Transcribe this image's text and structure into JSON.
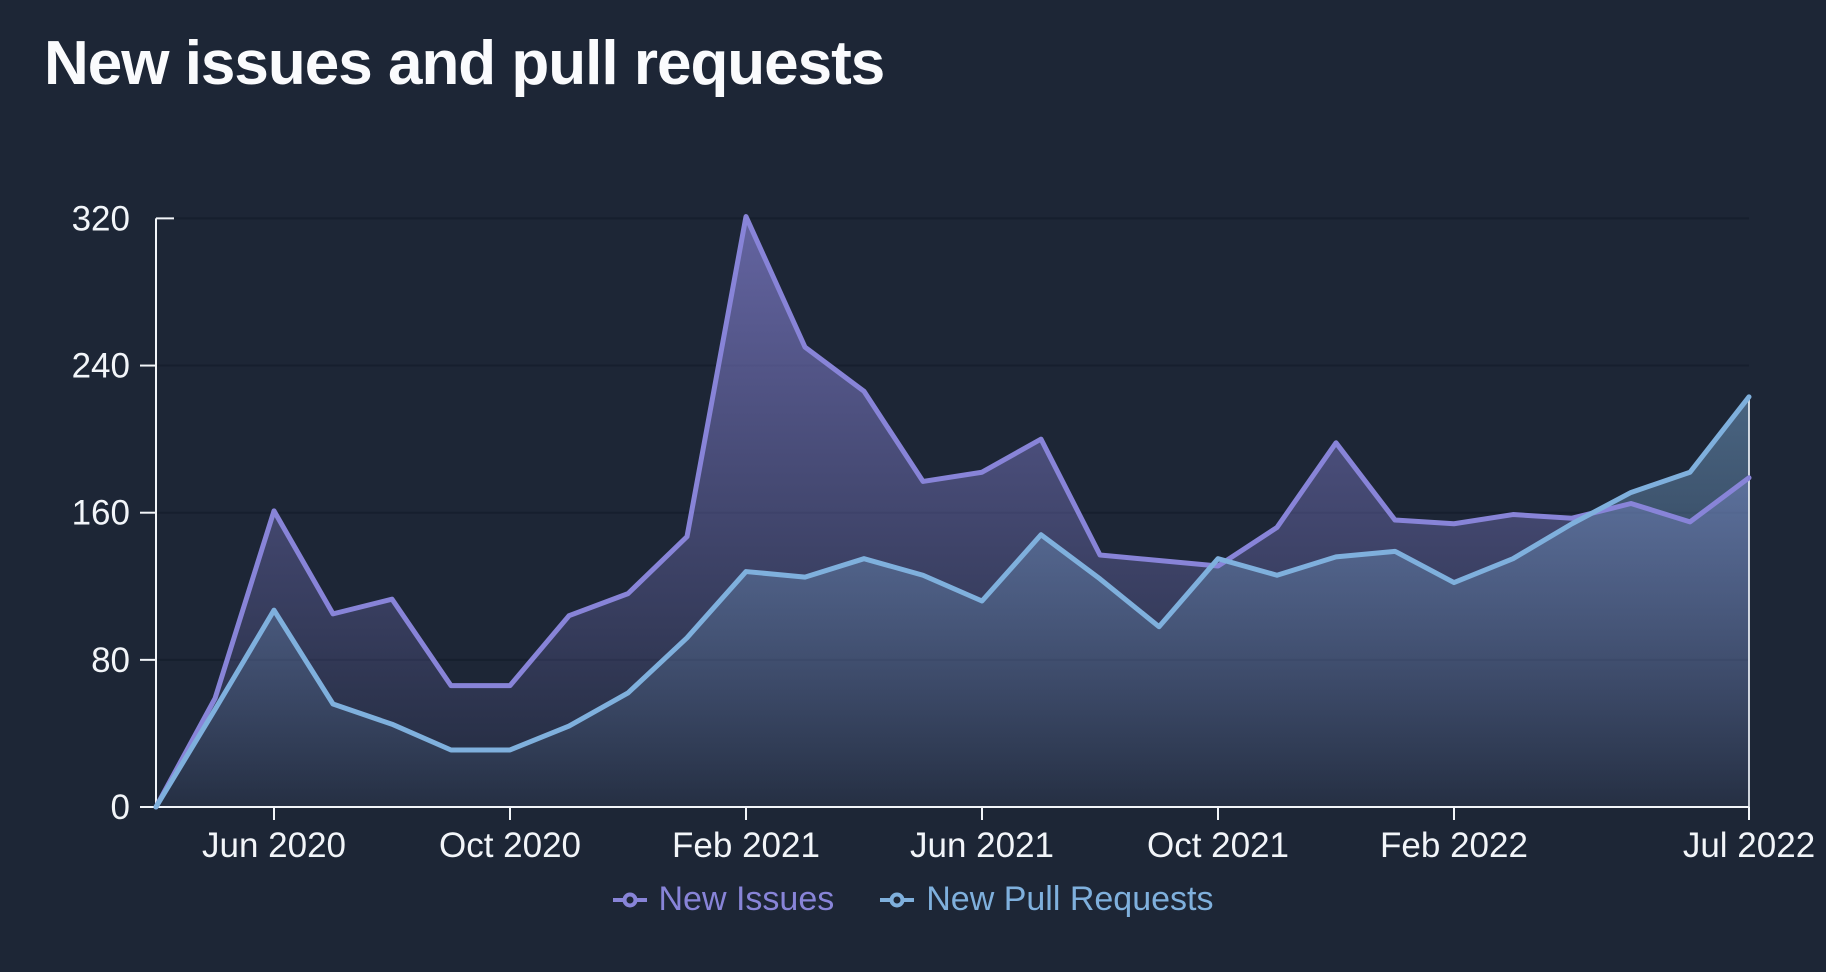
{
  "title": "New issues and pull requests",
  "colors": {
    "background": "#1d2636",
    "new_issues": "#8884d8",
    "new_pull_requests": "#7fb0dd",
    "axis": "#f2f5f9",
    "gridline": "#161f2e"
  },
  "legend": {
    "items": [
      {
        "label": "New Issues",
        "color": "#8884d8"
      },
      {
        "label": "New Pull Requests",
        "color": "#7fb0dd"
      }
    ]
  },
  "chart_data": {
    "type": "area",
    "title": "New issues and pull requests",
    "x": [
      "Apr 2020",
      "May 2020",
      "Jun 2020",
      "Jul 2020",
      "Aug 2020",
      "Sep 2020",
      "Oct 2020",
      "Nov 2020",
      "Dec 2020",
      "Jan 2021",
      "Feb 2021",
      "Mar 2021",
      "Apr 2021",
      "May 2021",
      "Jun 2021",
      "Jul 2021",
      "Aug 2021",
      "Sep 2021",
      "Oct 2021",
      "Nov 2021",
      "Dec 2021",
      "Jan 2022",
      "Feb 2022",
      "Mar 2022",
      "Apr 2022",
      "May 2022",
      "Jun 2022",
      "Jul 2022"
    ],
    "series": [
      {
        "name": "New Issues",
        "color": "#8884d8",
        "values": [
          0,
          59,
          161,
          105,
          113,
          66,
          66,
          104,
          116,
          147,
          321,
          250,
          226,
          177,
          182,
          200,
          137,
          134,
          131,
          152,
          198,
          156,
          154,
          159,
          157,
          165,
          155,
          179
        ]
      },
      {
        "name": "New Pull Requests",
        "color": "#7fb0dd",
        "values": [
          0,
          53,
          107,
          56,
          45,
          31,
          31,
          44,
          62,
          92,
          128,
          125,
          135,
          126,
          112,
          148,
          124,
          98,
          135,
          126,
          136,
          139,
          122,
          135,
          154,
          171,
          182,
          223
        ]
      }
    ],
    "x_tick_labels": [
      "Jun 2020",
      "Oct 2020",
      "Feb 2021",
      "Jun 2021",
      "Oct 2021",
      "Feb 2022",
      "Jul 2022"
    ],
    "x_tick_indices": [
      2,
      6,
      10,
      14,
      18,
      22,
      27
    ],
    "y_ticks": [
      0,
      80,
      160,
      240,
      320
    ],
    "ylim": [
      0,
      320
    ],
    "grid": "horizontal",
    "legend_position": "bottom"
  }
}
